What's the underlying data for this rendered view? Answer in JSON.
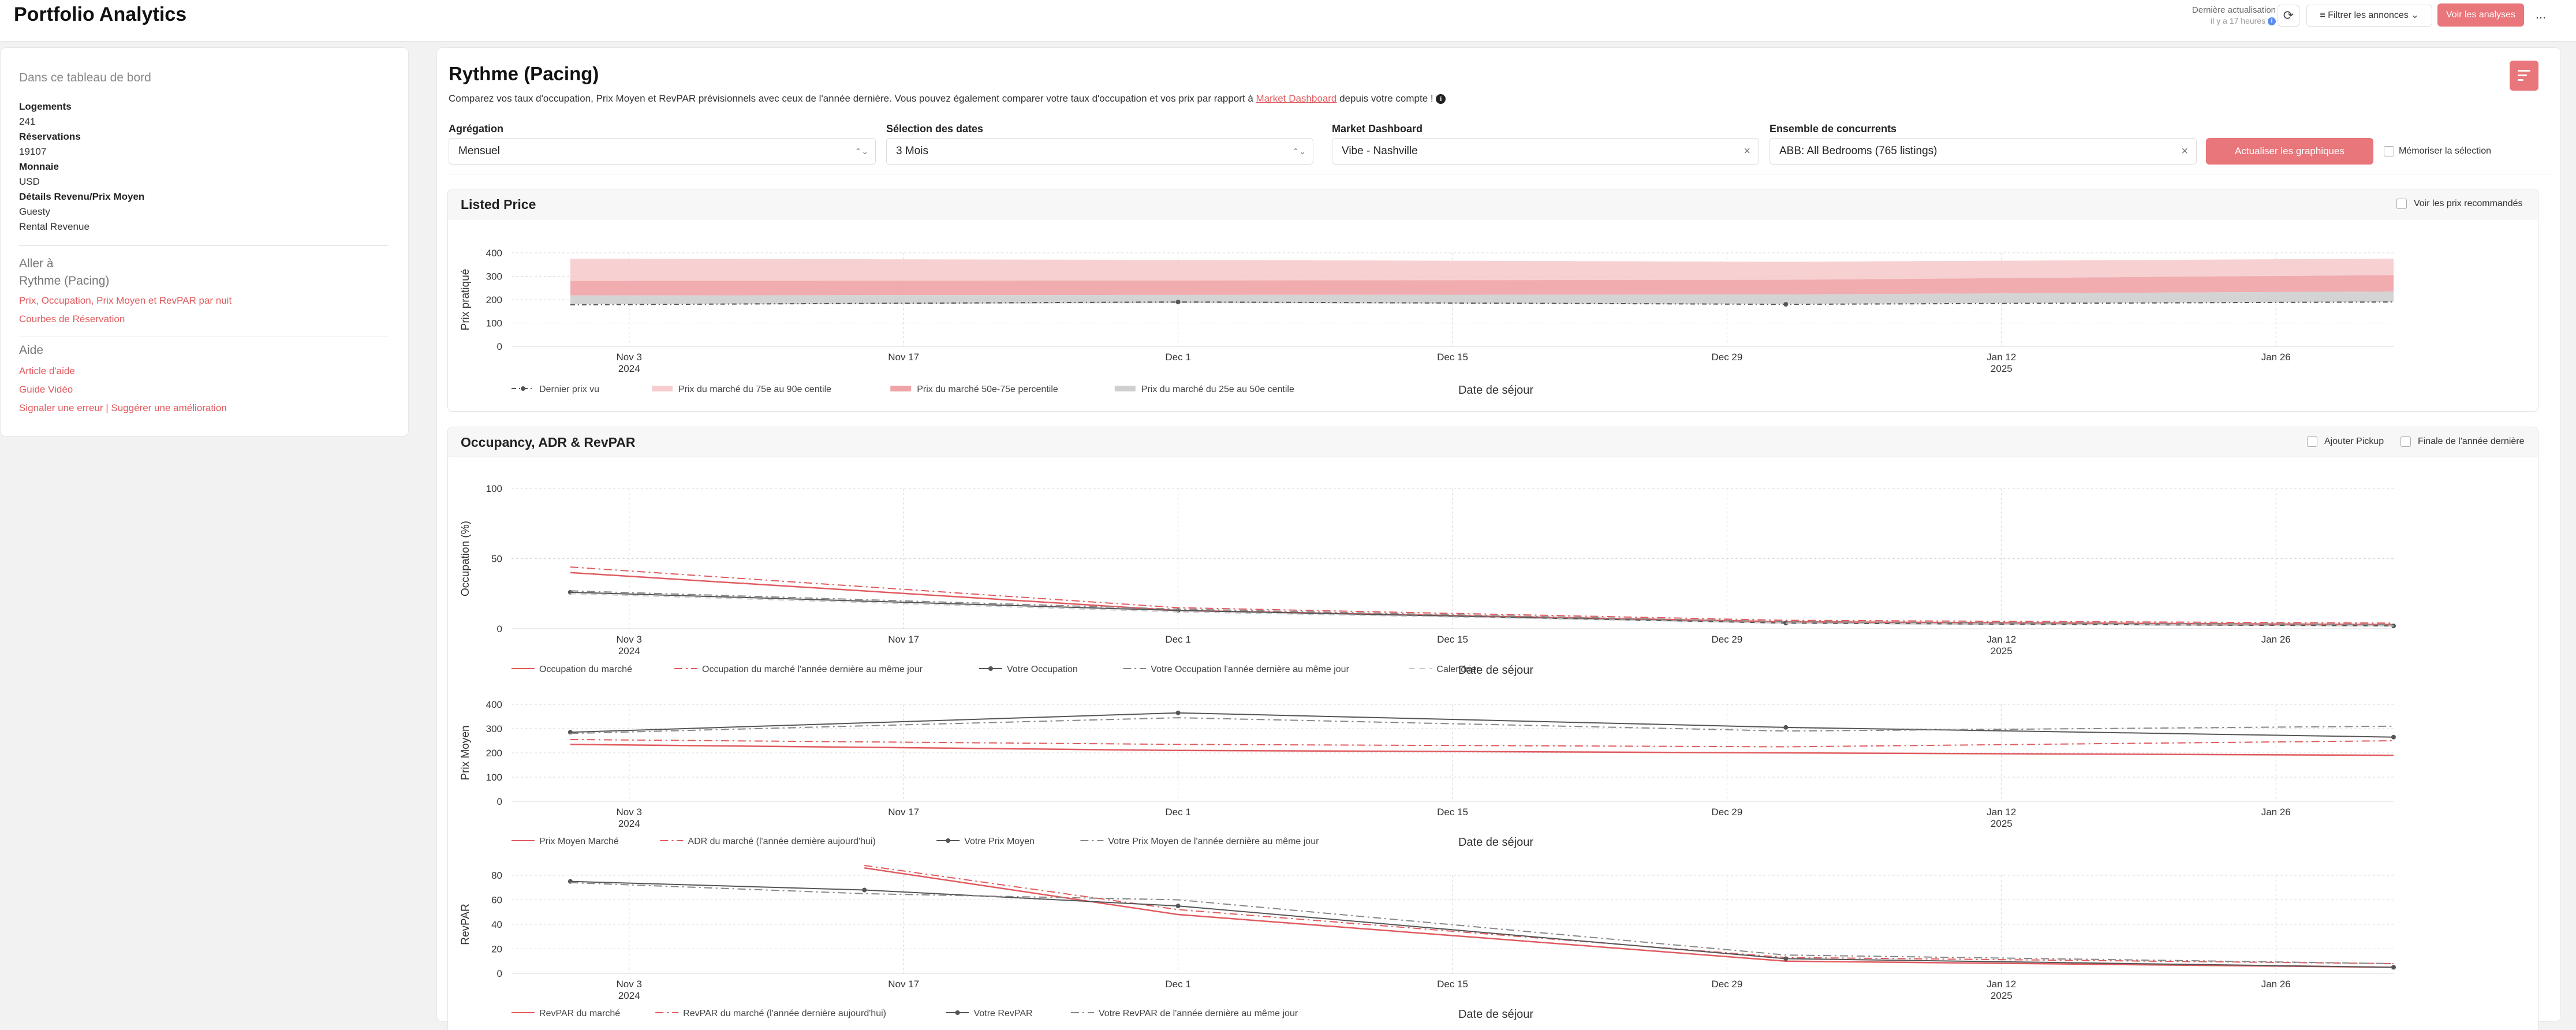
{
  "app": {
    "title": "Portfolio Analytics"
  },
  "header": {
    "last_update_label": "Dernière actualisation",
    "last_update_ago": "il y a 17 heures",
    "refresh_icon": "refresh-icon",
    "filter_label": "Filtrer les annonces",
    "view_analyses_label": "Voir les analyses",
    "more_label": "..."
  },
  "sidebar": {
    "heading": "Dans ce tableau de bord",
    "listings_label": "Logements",
    "listings_value": "241",
    "reservations_label": "Réservations",
    "reservations_value": "19107",
    "currency_label": "Monnaie",
    "currency_value": "USD",
    "revenue_label": "Détails Revenu/Prix Moyen",
    "revenue_source": "Guesty",
    "revenue_type": "Rental Revenue",
    "goto_heading": "Aller à",
    "goto_current": "Rythme (Pacing)",
    "goto_link1": "Prix, Occupation, Prix Moyen et RevPAR par nuit",
    "goto_link2": "Courbes de Réservation",
    "help_heading": "Aide",
    "help_link1": "Article d'aide",
    "help_link2": "Guide Vidéo",
    "help_link3": "Signaler une erreur | Suggérer une amélioration"
  },
  "main": {
    "title": "Rythme (Pacing)",
    "desc_before": "Comparez vos taux d'occupation, Prix Moyen et RevPAR prévisionnels avec ceux de l'année dernière. Vous pouvez également comparer votre taux d'occupation et vos prix par rapport à ",
    "desc_link": "Market Dashboard",
    "desc_after": " depuis votre compte ! ",
    "info_icon": "i"
  },
  "controls": {
    "aggregation_label": "Agrégation",
    "aggregation_value": "Mensuel",
    "dates_label": "Sélection des dates",
    "dates_value": "3 Mois",
    "market_label": "Market Dashboard",
    "market_value": "Vibe - Nashville",
    "comp_label": "Ensemble de concurrents",
    "comp_value": "ABB: All Bedrooms (765 listings)",
    "update_label": "Actualiser les graphiques",
    "remember_label": "Mémoriser la sélection",
    "caret": "⌃⌄",
    "clear": "×"
  },
  "listed_panel": {
    "title": "Listed Price",
    "recommended_label": "Voir les prix recommandés"
  },
  "occ_panel": {
    "title": "Occupancy, ADR & RevPAR",
    "pickup_label": "Ajouter Pickup",
    "final_label": "Finale de l'année dernière"
  },
  "x_axis": {
    "ticks": [
      {
        "label": "Nov 3",
        "year": "2024"
      },
      {
        "label": "Nov 17",
        "year": ""
      },
      {
        "label": "Dec 1",
        "year": ""
      },
      {
        "label": "Dec 15",
        "year": ""
      },
      {
        "label": "Dec 29",
        "year": ""
      },
      {
        "label": "Jan 12",
        "year": "2025"
      },
      {
        "label": "Jan 26",
        "year": ""
      }
    ],
    "title": "Date de séjour"
  },
  "chart_data": [
    {
      "type": "area",
      "title": "Listed Price",
      "xlabel": "Date de séjour",
      "ylabel": "Prix pratiqué",
      "x": [
        "2024-10-31",
        "2024-12-01",
        "2025-01-01",
        "2025-02-01"
      ],
      "ylim": [
        0,
        400
      ],
      "yticks": [
        0,
        100,
        200,
        300,
        400
      ],
      "series": [
        {
          "name": "Dernier prix vu",
          "style": "dash-dot-marker",
          "color": "#555555",
          "values": [
            178,
            190,
            180,
            190
          ]
        },
        {
          "name": "Prix du marché du 75e au 90e centile",
          "style": "band",
          "color": "#f6cccc",
          "low": [
            280,
            282,
            285,
            305
          ],
          "high": [
            375,
            370,
            362,
            375
          ]
        },
        {
          "name": "Prix du marché 50e-75e percentile",
          "style": "band",
          "color": "#f0a3a6",
          "low": [
            218,
            220,
            222,
            235
          ],
          "high": [
            280,
            282,
            285,
            305
          ]
        },
        {
          "name": "Prix du marché du 25e au 50e centile",
          "style": "band",
          "color": "#cfcfcf",
          "low": [
            180,
            185,
            182,
            190
          ],
          "high": [
            218,
            220,
            222,
            235
          ]
        }
      ],
      "grid": true,
      "legend": "bottom"
    },
    {
      "type": "line",
      "xlabel": "Date de séjour",
      "ylabel": "Occupation (%)",
      "x": [
        "2024-10-31",
        "2024-12-01",
        "2025-01-01",
        "2025-02-01"
      ],
      "ylim": [
        0,
        100
      ],
      "yticks": [
        0,
        50,
        100
      ],
      "series": [
        {
          "name": "Occupation du marché",
          "style": "solid",
          "color": "#e05a5e",
          "values": [
            40,
            13,
            5,
            3
          ]
        },
        {
          "name": "Occupation du marché l'année dernière au même jour",
          "style": "dashdot",
          "color": "#e05a5e",
          "values": [
            44,
            15,
            6,
            4
          ]
        },
        {
          "name": "Votre Occupation",
          "style": "solid-marker",
          "color": "#555555",
          "values": [
            26,
            13,
            4,
            2
          ]
        },
        {
          "name": "Votre Occupation l'année dernière au même jour",
          "style": "dashdot",
          "color": "#888888",
          "values": [
            27,
            14,
            5,
            3
          ]
        },
        {
          "name": "Calendrier",
          "style": "dash",
          "color": "#cccccc",
          "values": [
            25,
            12,
            4,
            2
          ]
        }
      ],
      "grid": true,
      "legend": "bottom"
    },
    {
      "type": "line",
      "xlabel": "Date de séjour",
      "ylabel": "Prix Moyen",
      "x": [
        "2024-10-31",
        "2024-12-01",
        "2025-01-01",
        "2025-02-01"
      ],
      "ylim": [
        0,
        400
      ],
      "yticks": [
        0,
        100,
        200,
        300,
        400
      ],
      "series": [
        {
          "name": "Prix Moyen Marché",
          "style": "solid",
          "color": "#e05a5e",
          "values": [
            235,
            210,
            200,
            190
          ]
        },
        {
          "name": "ADR du marché (l'année dernière aujourd'hui)",
          "style": "dashdot",
          "color": "#e05a5e",
          "values": [
            255,
            235,
            225,
            250
          ]
        },
        {
          "name": "Votre Prix Moyen",
          "style": "solid-marker",
          "color": "#555555",
          "values": [
            285,
            365,
            305,
            265
          ]
        },
        {
          "name": "Votre Prix Moyen de l'année dernière au même jour",
          "style": "dashdot",
          "color": "#888888",
          "values": [
            280,
            345,
            290,
            310
          ]
        }
      ],
      "grid": true,
      "legend": "bottom"
    },
    {
      "type": "line",
      "xlabel": "Date de séjour",
      "ylabel": "RevPAR",
      "x": [
        "2024-10-31",
        "2024-11-15",
        "2024-12-01",
        "2025-01-01",
        "2025-02-01"
      ],
      "ylim": [
        0,
        80
      ],
      "yticks": [
        0,
        20,
        40,
        60,
        80
      ],
      "series": [
        {
          "name": "RevPAR du marché",
          "style": "solid",
          "color": "#e05a5e",
          "values": [
            null,
            86,
            48,
            10,
            5
          ]
        },
        {
          "name": "RevPAR du marché (l'année dernière aujourd'hui)",
          "style": "dashdot",
          "color": "#e05a5e",
          "values": [
            null,
            88,
            52,
            13,
            8
          ]
        },
        {
          "name": "Votre RevPAR",
          "style": "solid-marker",
          "color": "#555555",
          "values": [
            75,
            68,
            55,
            12,
            5
          ]
        },
        {
          "name": "Votre RevPAR de l'année dernière au même jour",
          "style": "dashdot",
          "color": "#888888",
          "values": [
            74,
            65,
            60,
            15,
            8
          ]
        }
      ],
      "grid": true,
      "legend": "bottom"
    }
  ]
}
